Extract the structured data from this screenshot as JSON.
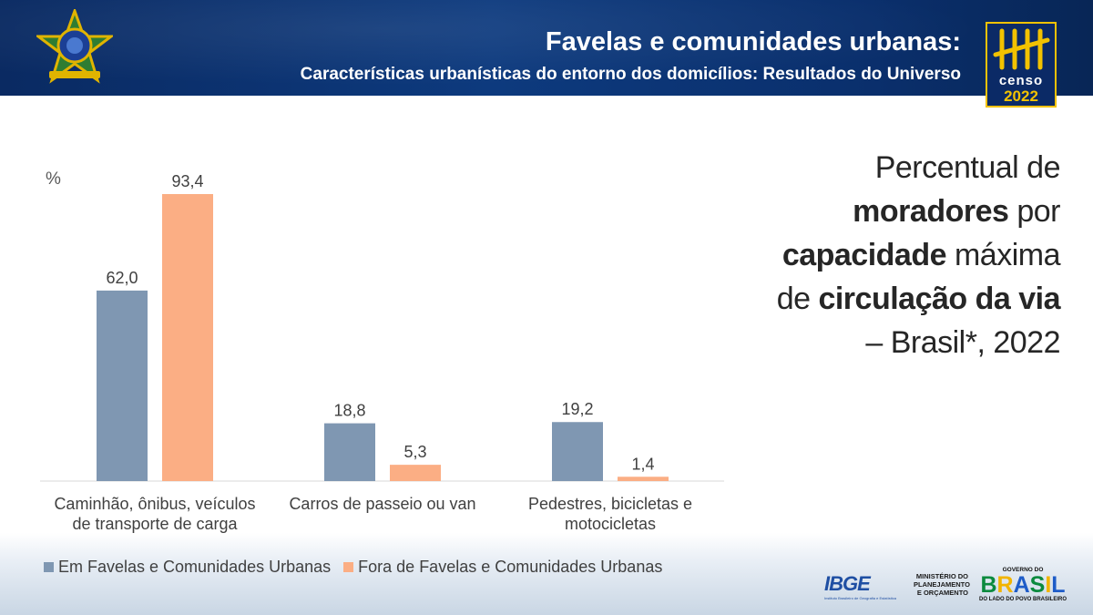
{
  "header": {
    "title": "Favelas e comunidades urbanas:",
    "subtitle": "Características urbanísticas do entorno dos domicílios: Resultados do Universo",
    "censo_word": "censo",
    "censo_year": "2022"
  },
  "side_title": {
    "line1": "Percentual de",
    "line2_bold": "moradores",
    "line2_rest": " por",
    "line3_bold": "capacidade",
    "line3_rest": " máxima",
    "line4_pre": "de ",
    "line4_bold": "circulação da via",
    "line5": "– Brasil*, 2022"
  },
  "chart_data": {
    "type": "bar",
    "title": "Percentual de moradores por capacidade máxima de circulação da via – Brasil*, 2022",
    "ylabel": "%",
    "categories": [
      [
        "Caminhão, ônibus, veículos",
        "de transporte de carga"
      ],
      [
        "Carros de passeio ou van"
      ],
      [
        "Pedestres, bicicletas e",
        "motocicletas"
      ]
    ],
    "series": [
      {
        "name": "Em Favelas e Comunidades Urbanas",
        "color": "#7f97b2",
        "values": [
          62.0,
          18.8,
          19.2
        ],
        "labels": [
          "62,0",
          "18,8",
          "19,2"
        ]
      },
      {
        "name": "Fora de Favelas e Comunidades Urbanas",
        "color": "#fbae84",
        "values": [
          93.4,
          5.3,
          1.4
        ],
        "labels": [
          "93,4",
          "5,3",
          "1,4"
        ]
      }
    ],
    "ylim": [
      0,
      100
    ],
    "legend_position": "bottom-left"
  },
  "footer": {
    "ibge": "IBGE",
    "ibge_sub": "Instituto Brasileiro de Geografia e Estatística",
    "mpo": [
      "MINISTÉRIO DO",
      "PLANEJAMENTO",
      "E ORÇAMENTO"
    ],
    "gov_top": "GOVERNO DO",
    "gov_brasil": "BRASIL",
    "gov_bottom": "DO LADO DO POVO BRASILEIRO"
  }
}
